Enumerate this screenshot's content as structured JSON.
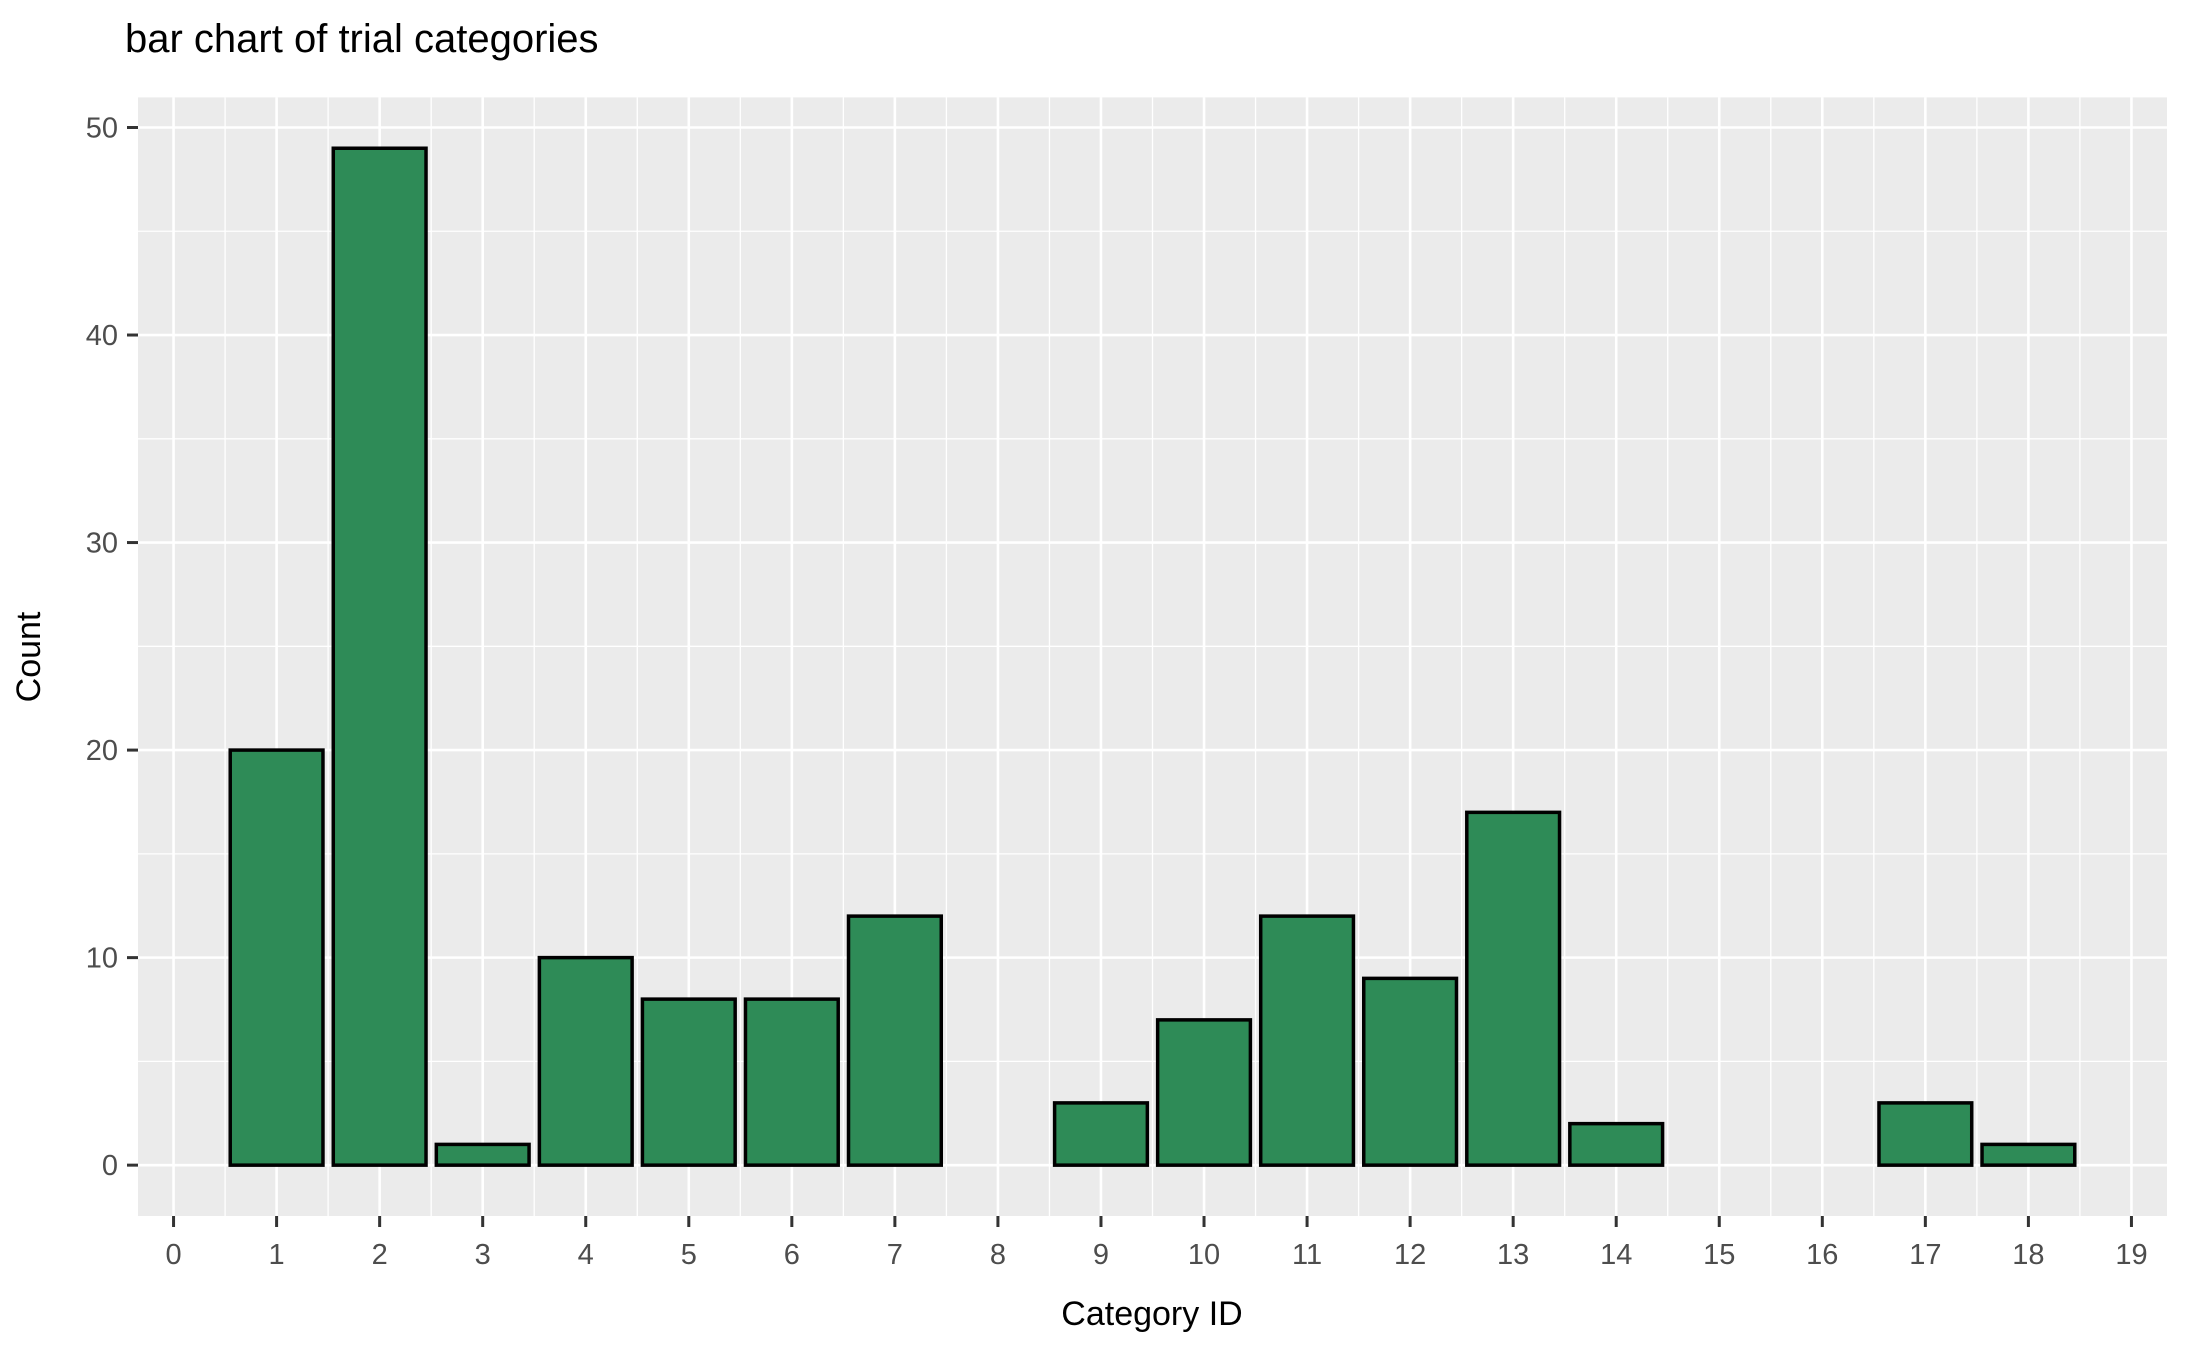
{
  "chart_data": {
    "type": "bar",
    "title": "bar chart of trial categories",
    "xlabel": "Category ID",
    "ylabel": "Count",
    "categories": [
      0,
      1,
      2,
      3,
      4,
      5,
      6,
      7,
      8,
      9,
      10,
      11,
      12,
      13,
      14,
      15,
      16,
      17,
      18,
      19
    ],
    "values": [
      0,
      20,
      49,
      1,
      10,
      8,
      8,
      12,
      0,
      3,
      7,
      12,
      9,
      17,
      2,
      0,
      0,
      3,
      1,
      0
    ],
    "x_ticks": [
      0,
      1,
      2,
      3,
      4,
      5,
      6,
      7,
      8,
      9,
      10,
      11,
      12,
      13,
      14,
      15,
      16,
      17,
      18,
      19
    ],
    "y_ticks": [
      0,
      10,
      20,
      30,
      40,
      50
    ],
    "y_minor_ticks": [
      5,
      15,
      25,
      35,
      45
    ],
    "x_minor_ticks": [
      0.5,
      1.5,
      2.5,
      3.5,
      4.5,
      5.5,
      6.5,
      7.5,
      8.5,
      9.5,
      10.5,
      11.5,
      12.5,
      13.5,
      14.5,
      15.5,
      16.5,
      17.5,
      18.5
    ],
    "xlim": [
      -0.345,
      19.345
    ],
    "ylim": [
      -2.45,
      51.45
    ],
    "bar_width": 0.9,
    "grid": "on",
    "legend": "none",
    "colors": {
      "bar_fill": "#2E8B57",
      "bar_stroke": "#000000",
      "panel_background": "#EBEBEB",
      "grid_major": "#FFFFFF",
      "grid_minor": "#FFFFFF",
      "tick_mark": "#333333",
      "tick_label": "#4D4D4D",
      "axis_title": "#000000",
      "title": "#000000",
      "page_background": "#FFFFFF"
    }
  }
}
